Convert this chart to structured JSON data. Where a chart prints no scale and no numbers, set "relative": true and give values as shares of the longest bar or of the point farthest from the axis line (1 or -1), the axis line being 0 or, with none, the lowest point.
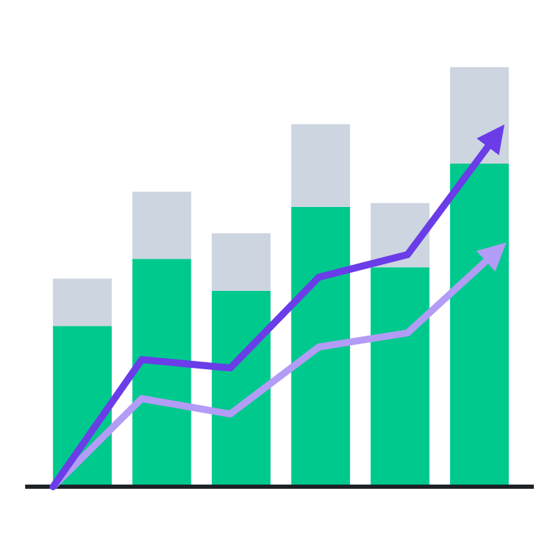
{
  "chart_data": [
    {
      "type": "bar",
      "relative": true,
      "stacked": true,
      "categories": [
        null,
        null,
        null,
        null,
        null,
        null
      ],
      "series": [
        {
          "color": "#00c98d",
          "values": [
            0.383,
            0.543,
            0.467,
            0.667,
            0.523,
            0.77
          ]
        },
        {
          "color": "#ccd5e0",
          "values": [
            0.113,
            0.16,
            0.137,
            0.197,
            0.153,
            0.23
          ]
        }
      ]
    },
    {
      "type": "line",
      "relative": true,
      "categories": [
        null,
        null,
        null,
        null,
        null,
        null
      ],
      "marker": "none",
      "line_style": "solid",
      "series": [
        {
          "color": "#b39cf5",
          "values": [
            0,
            0.251,
            0.207,
            0.398,
            0.438,
            0.669
          ]
        },
        {
          "color": "#6a3de8",
          "values": [
            0,
            0.362,
            0.338,
            0.597,
            0.661,
            1
          ]
        }
      ]
    }
  ]
}
